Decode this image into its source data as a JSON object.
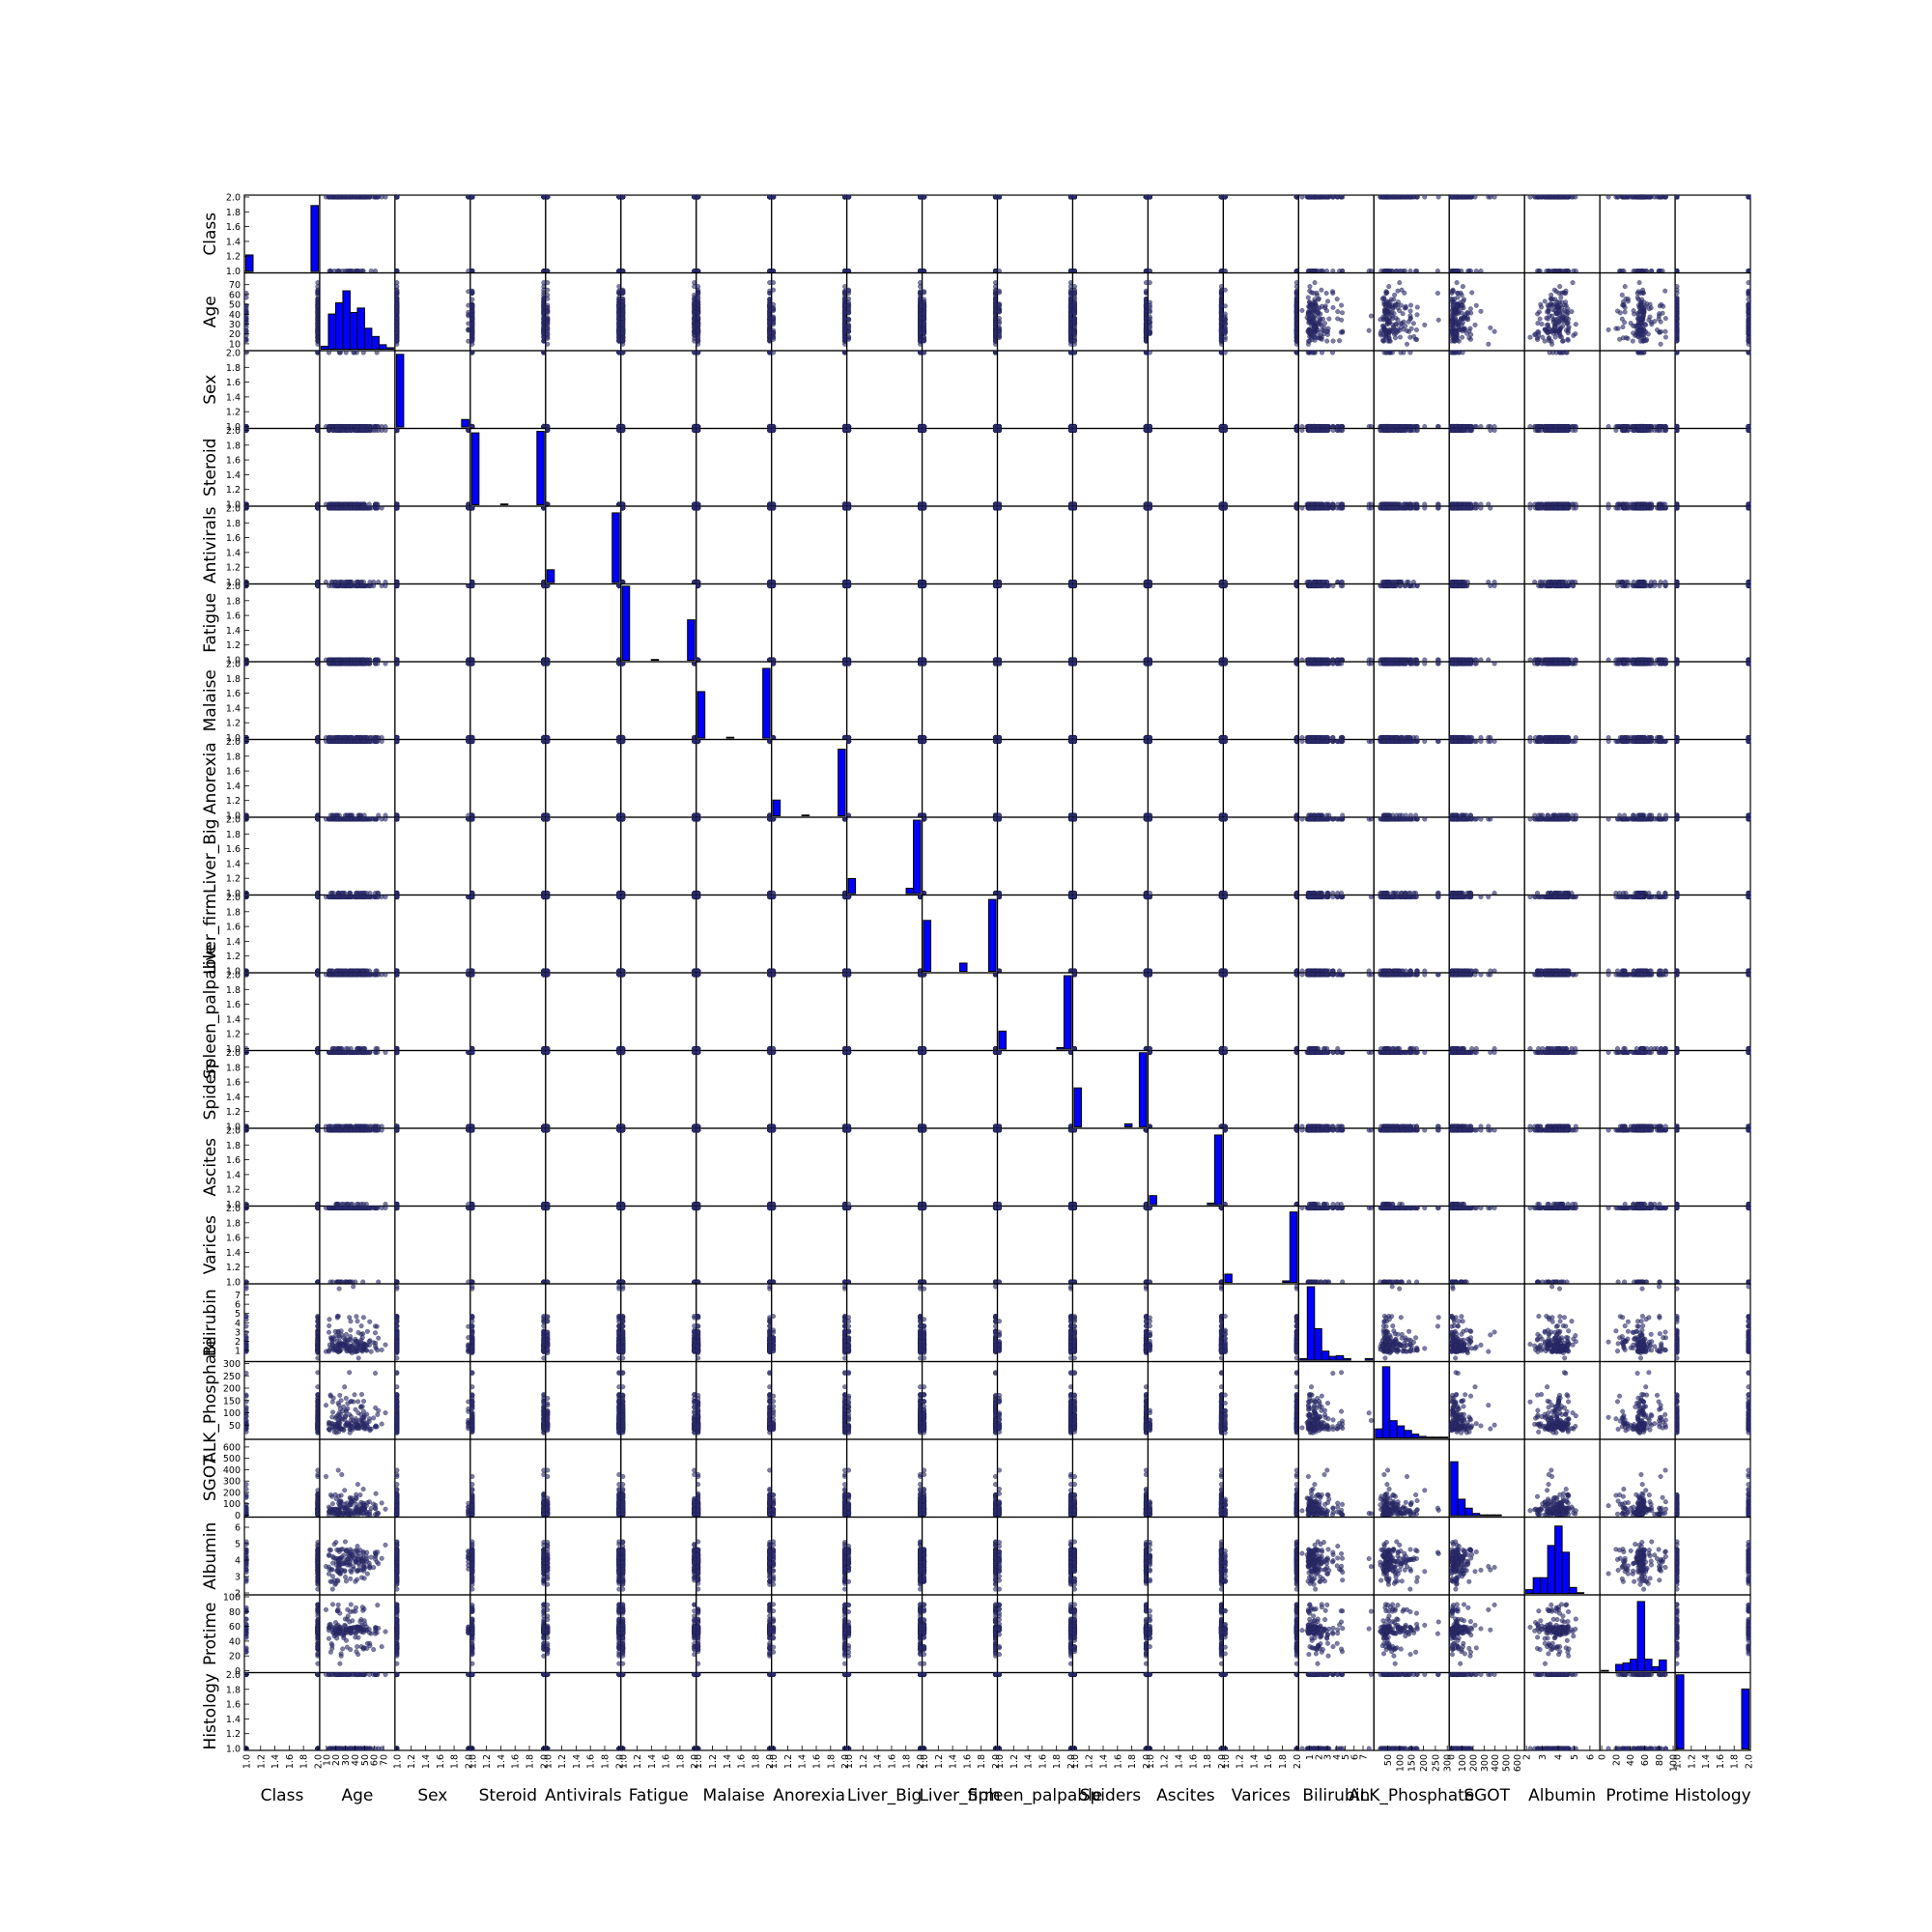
{
  "chart_data": {
    "type": "scatter",
    "variables": [
      {
        "name": "Class",
        "range": [
          1,
          2
        ],
        "ticks": [
          1.0,
          1.2,
          1.4,
          1.6,
          1.8,
          2.0
        ],
        "tick_labels": [
          "1.0",
          "1.2",
          "1.4",
          "1.6",
          "1.8",
          "2.0"
        ],
        "hist": [
          0.22,
          0,
          0,
          0,
          0,
          0,
          0,
          0,
          0,
          0.88
        ]
      },
      {
        "name": "Age",
        "range": [
          5,
          80
        ],
        "ticks": [
          10,
          20,
          30,
          40,
          50,
          60,
          70
        ],
        "tick_labels": [
          "10",
          "20",
          "30",
          "40",
          "50",
          "60",
          "70"
        ],
        "hist": [
          0.04,
          0.47,
          0.62,
          0.78,
          0.49,
          0.55,
          0.28,
          0.17,
          0.06,
          0.02
        ]
      },
      {
        "name": "Sex",
        "range": [
          1,
          2
        ],
        "ticks": [
          1.0,
          1.2,
          1.4,
          1.6,
          1.8,
          2.0
        ],
        "tick_labels": [
          "1.0",
          "1.2",
          "1.4",
          "1.6",
          "1.8",
          "2.0"
        ],
        "hist": [
          0.97,
          0,
          0,
          0,
          0,
          0,
          0,
          0,
          0,
          0.1
        ]
      },
      {
        "name": "Steroid",
        "range": [
          1,
          2
        ],
        "ticks": [
          1.0,
          1.2,
          1.4,
          1.6,
          1.8,
          2.0
        ],
        "tick_labels": [
          "1.0",
          "1.2",
          "1.4",
          "1.6",
          "1.8",
          "2.0"
        ],
        "hist": [
          0.96,
          0,
          0,
          0,
          0.01,
          0,
          0,
          0,
          0,
          0.98
        ]
      },
      {
        "name": "Antivirals",
        "range": [
          1,
          2
        ],
        "ticks": [
          1.0,
          1.2,
          1.4,
          1.6,
          1.8,
          2.0
        ],
        "tick_labels": [
          "1.0",
          "1.2",
          "1.4",
          "1.6",
          "1.8",
          "2.0"
        ],
        "hist": [
          0.17,
          0,
          0,
          0,
          0,
          0,
          0,
          0,
          0,
          0.93
        ]
      },
      {
        "name": "Fatigue",
        "range": [
          1,
          2
        ],
        "ticks": [
          1.0,
          1.2,
          1.4,
          1.6,
          1.8,
          2.0
        ],
        "tick_labels": [
          "1.0",
          "1.2",
          "1.4",
          "1.6",
          "1.8",
          "2.0"
        ],
        "hist": [
          0.99,
          0,
          0,
          0,
          0.01,
          0,
          0,
          0,
          0,
          0.54
        ]
      },
      {
        "name": "Malaise",
        "range": [
          1,
          2
        ],
        "ticks": [
          1.0,
          1.2,
          1.4,
          1.6,
          1.8,
          2.0
        ],
        "tick_labels": [
          "1.0",
          "1.2",
          "1.4",
          "1.6",
          "1.8",
          "2.0"
        ],
        "hist": [
          0.62,
          0,
          0,
          0,
          0.01,
          0,
          0,
          0,
          0,
          0.93
        ]
      },
      {
        "name": "Anorexia",
        "range": [
          1,
          2
        ],
        "ticks": [
          1.0,
          1.2,
          1.4,
          1.6,
          1.8,
          2.0
        ],
        "tick_labels": [
          "1.0",
          "1.2",
          "1.4",
          "1.6",
          "1.8",
          "2.0"
        ],
        "hist": [
          0.21,
          0,
          0,
          0,
          0.01,
          0,
          0,
          0,
          0,
          0.89
        ]
      },
      {
        "name": "Liver_Big",
        "range": [
          1,
          2
        ],
        "ticks": [
          1.0,
          1.2,
          1.4,
          1.6,
          1.8,
          2.0
        ],
        "tick_labels": [
          "1.0",
          "1.2",
          "1.4",
          "1.6",
          "1.8",
          "2.0"
        ],
        "hist": [
          0.2,
          0,
          0,
          0,
          0,
          0,
          0,
          0,
          0.07,
          0.98
        ]
      },
      {
        "name": "Liver_firm",
        "range": [
          1,
          2
        ],
        "ticks": [
          1.0,
          1.2,
          1.4,
          1.6,
          1.8,
          2.0
        ],
        "tick_labels": [
          "1.0",
          "1.2",
          "1.4",
          "1.6",
          "1.8",
          "2.0"
        ],
        "hist": [
          0.68,
          0,
          0,
          0,
          0,
          0.11,
          0,
          0,
          0,
          0.96
        ]
      },
      {
        "name": "Spleen_palpable",
        "range": [
          1,
          2
        ],
        "ticks": [
          1.0,
          1.2,
          1.4,
          1.6,
          1.8,
          2.0
        ],
        "tick_labels": [
          "1.0",
          "1.2",
          "1.4",
          "1.6",
          "1.8",
          "2.0"
        ],
        "hist": [
          0.24,
          0,
          0,
          0,
          0,
          0,
          0,
          0,
          0.02,
          0.98
        ]
      },
      {
        "name": "Spiders",
        "range": [
          1,
          2
        ],
        "ticks": [
          1.0,
          1.2,
          1.4,
          1.6,
          1.8,
          2.0
        ],
        "tick_labels": [
          "1.0",
          "1.2",
          "1.4",
          "1.6",
          "1.8",
          "2.0"
        ],
        "hist": [
          0.52,
          0,
          0,
          0,
          0,
          0,
          0,
          0.04,
          0,
          0.99
        ]
      },
      {
        "name": "Ascites",
        "range": [
          1,
          2
        ],
        "ticks": [
          1.0,
          1.2,
          1.4,
          1.6,
          1.8,
          2.0
        ],
        "tick_labels": [
          "1.0",
          "1.2",
          "1.4",
          "1.6",
          "1.8",
          "2.0"
        ],
        "hist": [
          0.12,
          0,
          0,
          0,
          0,
          0,
          0,
          0,
          0.02,
          0.93
        ]
      },
      {
        "name": "Varices",
        "range": [
          1,
          2
        ],
        "ticks": [
          1.0,
          1.2,
          1.4,
          1.6,
          1.8,
          2.0
        ],
        "tick_labels": [
          "1.0",
          "1.2",
          "1.4",
          "1.6",
          "1.8",
          "2.0"
        ],
        "hist": [
          0.11,
          0,
          0,
          0,
          0,
          0,
          0,
          0,
          0.02,
          0.94
        ]
      },
      {
        "name": "Bilirubin",
        "range": [
          0,
          8
        ],
        "ticks": [
          1,
          2,
          3,
          4,
          5,
          6,
          7
        ],
        "tick_labels": [
          "1",
          "2",
          "3",
          "4",
          "5",
          "6",
          "7"
        ],
        "hist": [
          0.02,
          0.98,
          0.42,
          0.12,
          0.05,
          0.06,
          0.02,
          0,
          0,
          0.02
        ]
      },
      {
        "name": "ALK_Phosphate",
        "range": [
          0,
          300
        ],
        "ticks": [
          50,
          100,
          150,
          200,
          250,
          300
        ],
        "tick_labels": [
          "50",
          "100",
          "150",
          "200",
          "250",
          "300"
        ],
        "hist": [
          0.12,
          0.95,
          0.23,
          0.16,
          0.1,
          0.05,
          0.02,
          0.01,
          0.01,
          0.01
        ]
      },
      {
        "name": "SGOT",
        "range": [
          0,
          650
        ],
        "ticks": [
          0,
          100,
          200,
          300,
          400,
          500,
          600
        ],
        "tick_labels": [
          "0",
          "100",
          "200",
          "300",
          "400",
          "500",
          "600"
        ],
        "hist": [
          0.72,
          0.22,
          0.1,
          0.03,
          0.01,
          0.01,
          0.01,
          0,
          0,
          0
        ]
      },
      {
        "name": "Albumin",
        "range": [
          2,
          6.5
        ],
        "ticks": [
          2,
          3,
          4,
          5,
          6
        ],
        "tick_labels": [
          "2",
          "3",
          "4",
          "5",
          "6"
        ],
        "hist": [
          0.05,
          0.21,
          0.21,
          0.64,
          0.9,
          0.55,
          0.08,
          0.01,
          0,
          0
        ]
      },
      {
        "name": "Protime",
        "range": [
          0,
          100
        ],
        "ticks": [
          0,
          20,
          40,
          60,
          80,
          100
        ],
        "tick_labels": [
          "0",
          "20",
          "40",
          "60",
          "80",
          "100"
        ],
        "hist": [
          0.01,
          0,
          0.09,
          0.11,
          0.16,
          0.93,
          0.16,
          0.06,
          0.15,
          0
        ]
      },
      {
        "name": "Histology",
        "range": [
          1,
          2
        ],
        "ticks": [
          1.0,
          1.2,
          1.4,
          1.6,
          1.8,
          2.0
        ],
        "tick_labels": [
          "1.0",
          "1.2",
          "1.4",
          "1.6",
          "1.8",
          "2.0"
        ],
        "hist": [
          0.99,
          0,
          0,
          0,
          0,
          0,
          0,
          0,
          0,
          0.8
        ]
      }
    ],
    "diagonal": "histogram",
    "marker_color": "#2c2c6c",
    "hist_color": "#0000ff",
    "grid": false,
    "legend": false
  }
}
